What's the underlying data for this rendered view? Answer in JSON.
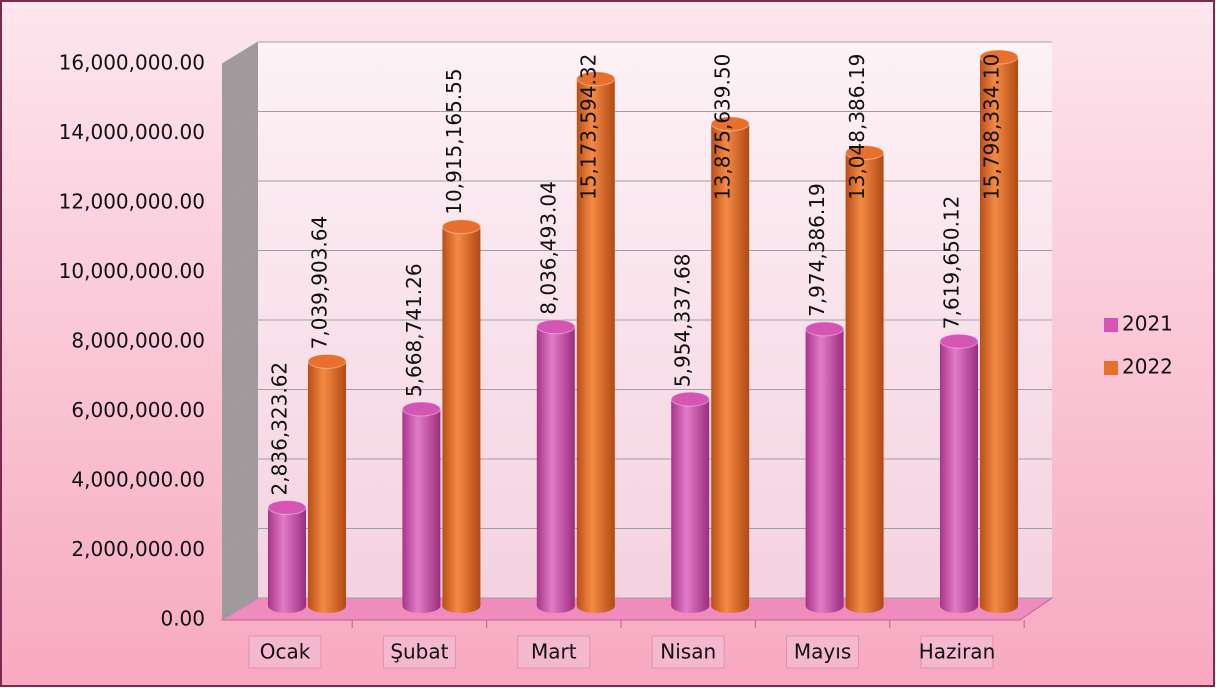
{
  "chart_data": {
    "type": "bar",
    "categories": [
      "Ocak",
      "Şubat",
      "Mart",
      "Nisan",
      "Mayıs",
      "Haziran"
    ],
    "series": [
      {
        "name": "2021",
        "color": "#d455b4",
        "values": [
          2836323.62,
          5668741.26,
          8036493.04,
          5954337.68,
          7974386.19,
          7619650.12
        ],
        "value_labels": [
          "2,836,323.62",
          "5,668,741.26",
          "8,036,493.04",
          "5,954,337.68",
          "7,974,386.19",
          "7,619,650.12"
        ]
      },
      {
        "name": "2022",
        "color": "#e9702c",
        "values": [
          7039903.64,
          10915165.55,
          15173594.32,
          13875639.5,
          13048386.19,
          15798334.1
        ],
        "value_labels": [
          "7,039,903.64",
          "10,915,165.55",
          "15,173,594.32",
          "13,875,639.50",
          "13,048,386.19",
          "15,798,334.10"
        ]
      }
    ],
    "ylim": [
      0,
      16000000
    ],
    "yticks": [
      {
        "value": 0,
        "label": "0.00"
      },
      {
        "value": 2000000,
        "label": "2,000,000.00"
      },
      {
        "value": 4000000,
        "label": "4,000,000.00"
      },
      {
        "value": 6000000,
        "label": "6,000,000.00"
      },
      {
        "value": 8000000,
        "label": "8,000,000.00"
      },
      {
        "value": 10000000,
        "label": "10,000,000.00"
      },
      {
        "value": 12000000,
        "label": "12,000,000.00"
      },
      {
        "value": 14000000,
        "label": "14,000,000.00"
      },
      {
        "value": 16000000,
        "label": "16,000,000.00"
      }
    ],
    "grid": true,
    "legend": "right"
  }
}
